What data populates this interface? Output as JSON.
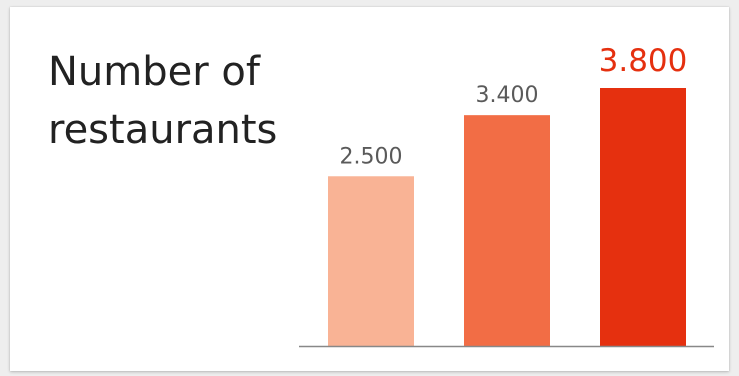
{
  "chart_data": {
    "type": "bar",
    "title": [
      "Number of",
      "restaurants"
    ],
    "categories": [
      "",
      "",
      ""
    ],
    "values": [
      2500,
      3400,
      3800
    ],
    "data_labels": [
      "2.500",
      "3.400",
      "3.800"
    ],
    "colors": [
      "#f9b395",
      "#f26d45",
      "#e5300f"
    ],
    "label_colors": [
      "#5a5a5a",
      "#5a5a5a",
      "#e5300f"
    ],
    "ylim": [
      0,
      4000
    ],
    "grid": false,
    "legend": "none",
    "axis_line_color": "#888888"
  }
}
